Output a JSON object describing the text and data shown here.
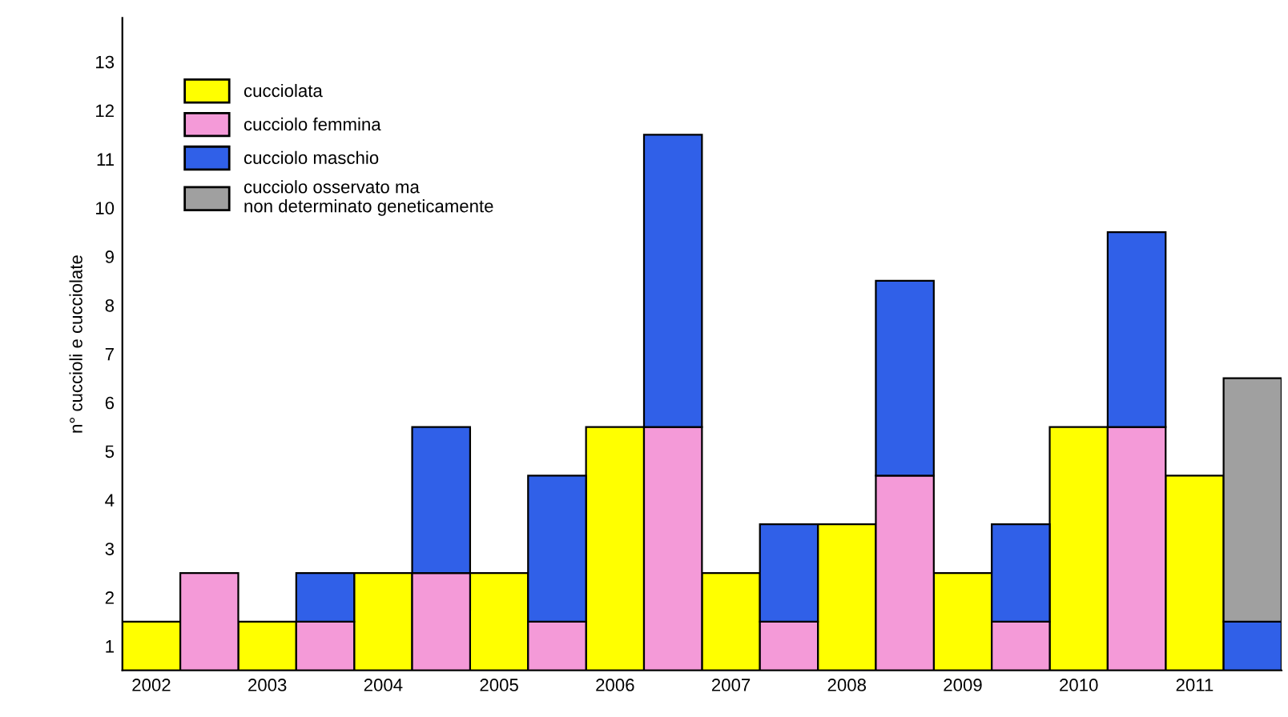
{
  "chart_data": {
    "type": "bar",
    "stacked": true,
    "ylabel": "n° cuccioli e cucciolate",
    "categories": [
      "2002",
      null,
      "2003",
      null,
      "2004",
      null,
      "2005",
      null,
      "2006",
      null,
      "2007",
      null,
      "2008",
      null,
      "2009",
      null,
      "2010",
      null,
      "2011",
      null
    ],
    "series": [
      {
        "name": "cucciolata",
        "color": "#ffff00",
        "values": [
          1,
          null,
          1,
          null,
          2,
          null,
          2,
          null,
          5,
          null,
          2,
          null,
          3,
          null,
          2,
          null,
          5,
          null,
          4,
          null
        ]
      },
      {
        "name": "cucciolo femmina",
        "color": "#f49ad8",
        "values": [
          null,
          2,
          null,
          1,
          null,
          2,
          null,
          1,
          null,
          5,
          null,
          1,
          null,
          4,
          null,
          1,
          null,
          5,
          null,
          0
        ]
      },
      {
        "name": "cucciolo maschio",
        "color": "#3060e8",
        "values": [
          null,
          0,
          null,
          1,
          null,
          3,
          null,
          3,
          null,
          6,
          null,
          2,
          null,
          4,
          null,
          2,
          null,
          4,
          null,
          1
        ]
      },
      {
        "name": "cucciolo osservato ma\nnon determinato geneticamente",
        "color": "#a0a0a0",
        "values": [
          null,
          0,
          null,
          0,
          null,
          0,
          null,
          0,
          null,
          0,
          null,
          0,
          null,
          0,
          null,
          0,
          null,
          0,
          null,
          5
        ]
      }
    ],
    "ylim": [
      0,
      13.4
    ],
    "yticks": [
      {
        "value": 0.5,
        "label": "1"
      },
      {
        "value": 1.5,
        "label": "2"
      },
      {
        "value": 2.5,
        "label": "3"
      },
      {
        "value": 3.5,
        "label": "4"
      },
      {
        "value": 4.5,
        "label": "5"
      },
      {
        "value": 5.5,
        "label": "6"
      },
      {
        "value": 6.5,
        "label": "7"
      },
      {
        "value": 7.5,
        "label": "8"
      },
      {
        "value": 8.5,
        "label": "9"
      },
      {
        "value": 9.5,
        "label": "10"
      },
      {
        "value": 10.5,
        "label": "11"
      },
      {
        "value": 11.5,
        "label": "12"
      },
      {
        "value": 12.5,
        "label": "13"
      }
    ],
    "legend": "top left"
  }
}
